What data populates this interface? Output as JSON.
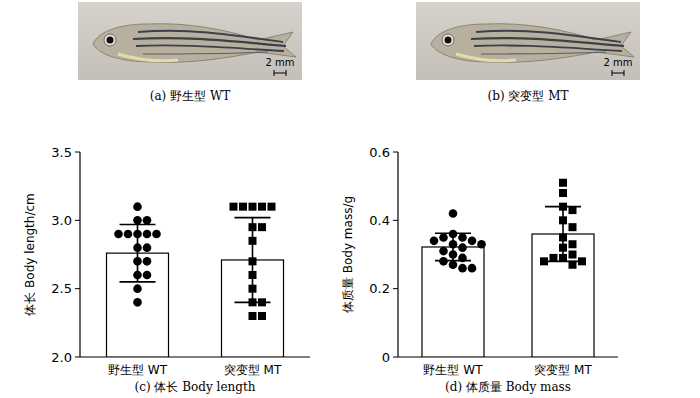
{
  "figures": [
    {
      "caption": "(a) 野生型 WT",
      "scale_bar": "2 mm"
    },
    {
      "caption": "(b) 突变型 MT",
      "scale_bar": "2 mm"
    }
  ],
  "chart_data": [
    {
      "type": "bar",
      "caption": "(c) 体长 Body length",
      "y_label": "体长 Body length/cm",
      "categories": [
        "野生型 WT",
        "突变型 MT"
      ],
      "values": [
        2.76,
        2.71
      ],
      "errors": [
        0.21,
        0.31
      ],
      "color": "#ffffff",
      "points": [
        {
          "marker": "circle",
          "color": "#000000",
          "values": [
            3.1,
            3.0,
            3.0,
            2.9,
            2.9,
            2.9,
            2.9,
            2.9,
            2.8,
            2.8,
            2.7,
            2.7,
            2.6,
            2.6,
            2.5,
            2.4
          ]
        },
        {
          "marker": "square",
          "color": "#000000",
          "values": [
            3.1,
            3.1,
            3.1,
            3.1,
            3.1,
            2.95,
            2.95,
            2.85,
            2.7,
            2.6,
            2.5,
            2.4,
            2.4,
            2.3,
            2.3
          ]
        }
      ],
      "ylim": [
        2,
        3.5
      ],
      "yticks": [
        {
          "value": 2,
          "label": "2.0"
        },
        2.5,
        {
          "value": 3,
          "label": "3.0"
        },
        3.5
      ]
    },
    {
      "type": "bar",
      "caption": "(d) 体质量 Body mass",
      "y_label": "体质量 Body mass/g",
      "categories": [
        "野生型 WT",
        "突变型 MT"
      ],
      "values": [
        0.322,
        0.36
      ],
      "errors": [
        0.04,
        0.08
      ],
      "color": "#ffffff",
      "points": [
        {
          "marker": "circle",
          "color": "#000000",
          "values": [
            0.42,
            0.36,
            0.35,
            0.35,
            0.34,
            0.34,
            0.33,
            0.33,
            0.32,
            0.31,
            0.3,
            0.29,
            0.28,
            0.27,
            0.26,
            0.26
          ]
        },
        {
          "marker": "square",
          "color": "#000000",
          "values": [
            0.51,
            0.48,
            0.44,
            0.43,
            0.4,
            0.38,
            0.35,
            0.33,
            0.32,
            0.3,
            0.29,
            0.29,
            0.28,
            0.28,
            0.27
          ]
        }
      ],
      "ylim": [
        0,
        0.6
      ],
      "yticks": [
        0,
        0.2,
        0.4,
        0.6
      ]
    }
  ]
}
